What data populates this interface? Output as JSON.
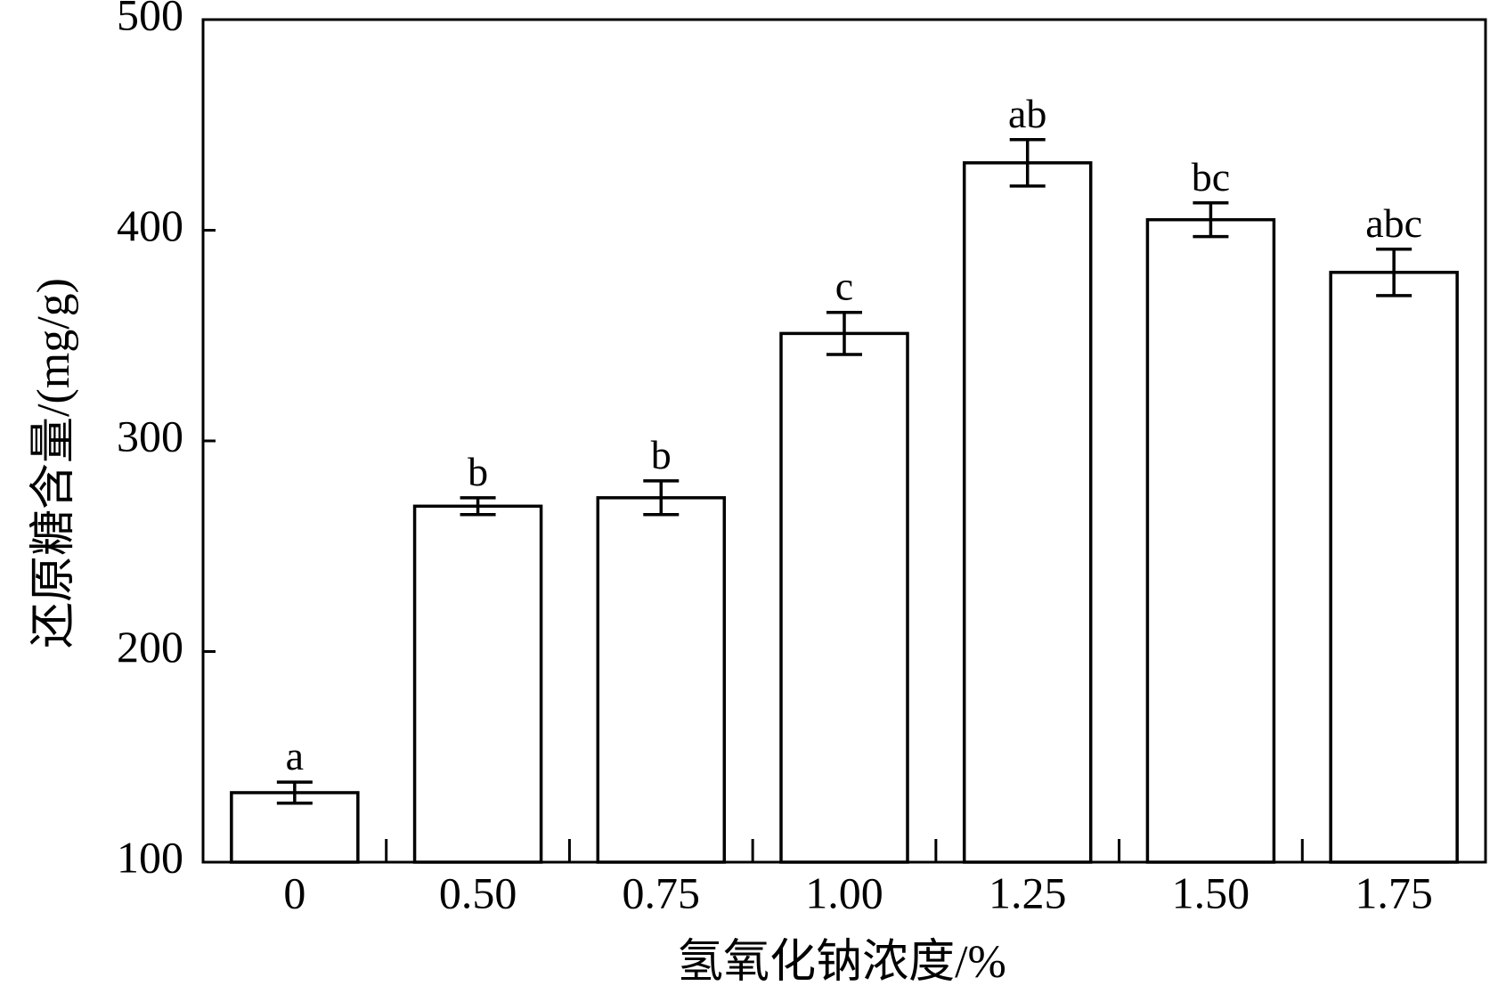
{
  "chart_data": {
    "type": "bar",
    "title": "",
    "xlabel": "氢氧化钠浓度/%",
    "ylabel": "还原糖含量/(mg/g)",
    "categories": [
      "0",
      "0.50",
      "0.75",
      "1.00",
      "1.25",
      "1.50",
      "1.75"
    ],
    "values": [
      133,
      269,
      273,
      351,
      432,
      405,
      380
    ],
    "errors": [
      5,
      4,
      8,
      10,
      11,
      8,
      11
    ],
    "significance_labels": [
      "a",
      "b",
      "b",
      "c",
      "ab",
      "bc",
      "abc"
    ],
    "yticks": [
      100,
      200,
      300,
      400,
      500
    ],
    "ylim": [
      100,
      500
    ],
    "grid": false,
    "legend": "none",
    "colors": {
      "bar_fill": "#ffffff",
      "stroke": "#000000"
    }
  }
}
